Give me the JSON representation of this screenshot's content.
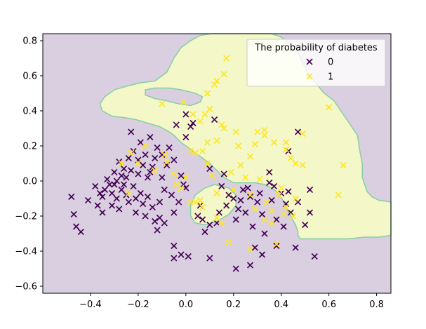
{
  "chart_data": {
    "type": "scatter",
    "title": "",
    "xlabel": "",
    "ylabel": "",
    "xlim": [
      -0.6,
      0.86
    ],
    "ylim": [
      -0.64,
      0.84
    ],
    "xticks": [
      -0.4,
      -0.2,
      0.0,
      0.2,
      0.4,
      0.6,
      0.8
    ],
    "xtick_labels": [
      "−0.4",
      "−0.2",
      "0.0",
      "0.2",
      "0.4",
      "0.6",
      "0.8"
    ],
    "yticks": [
      -0.6,
      -0.4,
      -0.2,
      0.0,
      0.2,
      0.4,
      0.6,
      0.8
    ],
    "ytick_labels": [
      "−0.6",
      "−0.4",
      "−0.2",
      "0.0",
      "0.2",
      "0.4",
      "0.6",
      "0.8"
    ],
    "grid": false,
    "legend": {
      "title": "The probability of diabetes",
      "placement": "top-right",
      "entries": [
        "0",
        "1"
      ]
    },
    "colors": {
      "class0": "#440154",
      "class1": "#fde725",
      "region0": "#d9cfe0",
      "region1": "#f4f7c7",
      "boundary": "#86cfa2"
    },
    "decision_regions": {
      "class1_regions": [
        [
          [
            0.45,
            0.75
          ],
          [
            0.47,
            0.73
          ],
          [
            0.51,
            0.62
          ],
          [
            0.55,
            0.55
          ],
          [
            0.58,
            0.5
          ],
          [
            0.62,
            0.46
          ],
          [
            0.65,
            0.4
          ],
          [
            0.68,
            0.34
          ],
          [
            0.72,
            0.26
          ],
          [
            0.73,
            0.17
          ],
          [
            0.74,
            0.1
          ],
          [
            0.74,
            0.02
          ],
          [
            0.75,
            -0.02
          ],
          [
            0.76,
            -0.06
          ],
          [
            0.78,
            -0.09
          ],
          [
            0.81,
            -0.11
          ],
          [
            0.86,
            -0.12
          ],
          [
            0.86,
            -0.31
          ],
          [
            0.81,
            -0.32
          ],
          [
            0.75,
            -0.32
          ],
          [
            0.68,
            -0.33
          ],
          [
            0.6,
            -0.33
          ],
          [
            0.52,
            -0.33
          ],
          [
            0.48,
            -0.33
          ],
          [
            0.47,
            -0.31
          ],
          [
            0.47,
            -0.29
          ],
          [
            0.46,
            -0.25
          ],
          [
            0.44,
            -0.2
          ],
          [
            0.42,
            -0.15
          ],
          [
            0.4,
            -0.09
          ],
          [
            0.38,
            -0.06
          ],
          [
            0.36,
            -0.04
          ],
          [
            0.33,
            -0.02
          ],
          [
            0.29,
            -0.01
          ],
          [
            0.24,
            -0.01
          ],
          [
            0.2,
            -0.01
          ],
          [
            0.16,
            0.02
          ],
          [
            0.13,
            0.06
          ],
          [
            0.1,
            0.1
          ],
          [
            0.06,
            0.14
          ],
          [
            0.02,
            0.18
          ],
          [
            -0.02,
            0.22
          ],
          [
            -0.05,
            0.26
          ],
          [
            -0.07,
            0.28
          ],
          [
            -0.11,
            0.31
          ],
          [
            -0.16,
            0.33
          ],
          [
            -0.21,
            0.35
          ],
          [
            -0.25,
            0.36
          ],
          [
            -0.31,
            0.37
          ],
          [
            -0.35,
            0.4
          ],
          [
            -0.36,
            0.44
          ],
          [
            -0.34,
            0.48
          ],
          [
            -0.3,
            0.52
          ],
          [
            -0.25,
            0.54
          ],
          [
            -0.19,
            0.56
          ],
          [
            -0.13,
            0.57
          ],
          [
            -0.08,
            0.62
          ],
          [
            -0.05,
            0.7
          ],
          [
            -0.02,
            0.76
          ],
          [
            0.02,
            0.8
          ],
          [
            0.06,
            0.83
          ],
          [
            0.11,
            0.84
          ],
          [
            0.18,
            0.84
          ],
          [
            0.28,
            0.84
          ],
          [
            0.36,
            0.84
          ],
          [
            0.4,
            0.82
          ],
          [
            0.43,
            0.79
          ]
        ],
        [
          [
            0.12,
            -0.02
          ],
          [
            0.18,
            -0.04
          ],
          [
            0.21,
            -0.08
          ],
          [
            0.21,
            -0.14
          ],
          [
            0.18,
            -0.19
          ],
          [
            0.13,
            -0.23
          ],
          [
            0.08,
            -0.25
          ],
          [
            0.04,
            -0.24
          ],
          [
            0.02,
            -0.2
          ],
          [
            0.02,
            -0.14
          ],
          [
            0.04,
            -0.08
          ],
          [
            0.08,
            -0.04
          ]
        ]
      ],
      "class0_holes": [
        [
          [
            -0.17,
            0.52
          ],
          [
            -0.13,
            0.53
          ],
          [
            -0.07,
            0.53
          ],
          [
            -0.02,
            0.52
          ],
          [
            0.04,
            0.5
          ],
          [
            0.07,
            0.48
          ],
          [
            0.06,
            0.45
          ],
          [
            0.02,
            0.43
          ],
          [
            -0.03,
            0.44
          ],
          [
            -0.09,
            0.46
          ],
          [
            -0.13,
            0.47
          ],
          [
            -0.17,
            0.49
          ]
        ]
      ]
    },
    "series": [
      {
        "name": "0",
        "marker": "x",
        "color": "#440154",
        "points": [
          [
            -0.48,
            -0.09
          ],
          [
            -0.47,
            -0.19
          ],
          [
            -0.46,
            -0.26
          ],
          [
            -0.44,
            -0.29
          ],
          [
            -0.41,
            -0.11
          ],
          [
            -0.38,
            -0.03
          ],
          [
            -0.37,
            -0.14
          ],
          [
            -0.36,
            -0.07
          ],
          [
            -0.35,
            -0.09
          ],
          [
            -0.35,
            -0.18
          ],
          [
            -0.34,
            -0.05
          ],
          [
            -0.33,
            0.01
          ],
          [
            -0.32,
            -0.02
          ],
          [
            -0.31,
            -0.07
          ],
          [
            -0.31,
            -0.14
          ],
          [
            -0.3,
            0.05
          ],
          [
            -0.3,
            -0.02
          ],
          [
            -0.29,
            0.0
          ],
          [
            -0.29,
            -0.1
          ],
          [
            -0.28,
            -0.16
          ],
          [
            -0.28,
            0.11
          ],
          [
            -0.27,
            -0.05
          ],
          [
            -0.27,
            0.03
          ],
          [
            -0.26,
            0.07
          ],
          [
            -0.26,
            -0.02
          ],
          [
            -0.25,
            0.02
          ],
          [
            -0.25,
            -0.08
          ],
          [
            -0.24,
            0.13
          ],
          [
            -0.24,
            -0.12
          ],
          [
            -0.23,
            0.06
          ],
          [
            -0.23,
            0.28
          ],
          [
            -0.22,
            -0.03
          ],
          [
            -0.22,
            0.17
          ],
          [
            -0.21,
            -0.1
          ],
          [
            -0.21,
            -0.18
          ],
          [
            -0.2,
            0.04
          ],
          [
            -0.2,
            0.12
          ],
          [
            -0.19,
            0.22
          ],
          [
            -0.19,
            -0.07
          ],
          [
            -0.18,
            -0.13
          ],
          [
            -0.18,
            0.09
          ],
          [
            -0.17,
            -0.2
          ],
          [
            -0.17,
            0.15
          ],
          [
            -0.16,
            0.02
          ],
          [
            -0.16,
            -0.09
          ],
          [
            -0.15,
            0.25
          ],
          [
            -0.15,
            0.05
          ],
          [
            -0.14,
            -0.15
          ],
          [
            -0.14,
            0.08
          ],
          [
            -0.13,
            -0.23
          ],
          [
            -0.13,
            0.13
          ],
          [
            -0.12,
            -0.28
          ],
          [
            -0.12,
            0.19
          ],
          [
            -0.11,
            -0.12
          ],
          [
            -0.11,
            -0.21
          ],
          [
            -0.1,
            0.02
          ],
          [
            -0.1,
            0.15
          ],
          [
            -0.09,
            -0.24
          ],
          [
            -0.09,
            -0.05
          ],
          [
            -0.08,
            0.09
          ],
          [
            -0.07,
            0.19
          ],
          [
            -0.06,
            -0.08
          ],
          [
            -0.05,
            -0.18
          ],
          [
            -0.05,
            0.12
          ],
          [
            -0.04,
            0.32
          ],
          [
            -0.03,
            -0.12
          ],
          [
            -0.02,
            0.03
          ],
          [
            -0.01,
            -0.02
          ],
          [
            0.0,
            0.38
          ],
          [
            0.0,
            -0.04
          ],
          [
            0.0,
            0.25
          ],
          [
            0.02,
            0.31
          ],
          [
            0.03,
            0.33
          ],
          [
            0.05,
            -0.2
          ],
          [
            0.06,
            -0.14
          ],
          [
            0.07,
            -0.22
          ],
          [
            0.08,
            -0.29
          ],
          [
            0.1,
            -0.25
          ],
          [
            0.1,
            0.07
          ],
          [
            0.12,
            0.35
          ],
          [
            0.13,
            -0.24
          ],
          [
            0.14,
            -0.18
          ],
          [
            0.15,
            -0.03
          ],
          [
            0.16,
            0.04
          ],
          [
            0.17,
            -0.14
          ],
          [
            0.18,
            -0.08
          ],
          [
            0.2,
            -0.1
          ],
          [
            0.21,
            -0.22
          ],
          [
            0.22,
            -0.16
          ],
          [
            0.23,
            -0.11
          ],
          [
            0.24,
            -0.05
          ],
          [
            0.25,
            -0.18
          ],
          [
            0.26,
            -0.04
          ],
          [
            0.27,
            -0.09
          ],
          [
            0.28,
            -0.26
          ],
          [
            0.3,
            -0.12
          ],
          [
            0.31,
            -0.07
          ],
          [
            0.32,
            -0.19
          ],
          [
            0.33,
            -0.3
          ],
          [
            0.35,
            -0.01
          ],
          [
            0.35,
            0.05
          ],
          [
            0.36,
            -0.11
          ],
          [
            0.37,
            -0.03
          ],
          [
            0.38,
            -0.22
          ],
          [
            0.38,
            -0.37
          ],
          [
            0.4,
            -0.07
          ],
          [
            0.41,
            -0.26
          ],
          [
            0.42,
            -0.13
          ],
          [
            0.43,
            0.17
          ],
          [
            0.43,
            -0.06
          ],
          [
            0.44,
            -0.18
          ],
          [
            0.46,
            -0.38
          ],
          [
            0.47,
            -0.12
          ],
          [
            0.47,
            0.28
          ],
          [
            0.5,
            -0.25
          ],
          [
            0.52,
            -0.18
          ],
          [
            0.52,
            -0.05
          ],
          [
            0.54,
            -0.43
          ],
          [
            -0.05,
            -0.37
          ],
          [
            -0.05,
            -0.44
          ],
          [
            -0.02,
            -0.42
          ],
          [
            0.01,
            -0.43
          ],
          [
            0.1,
            -0.44
          ],
          [
            0.21,
            -0.5
          ],
          [
            0.27,
            -0.48
          ],
          [
            0.32,
            -0.42
          ],
          [
            0.29,
            -0.38
          ]
        ]
      },
      {
        "name": "1",
        "marker": "x",
        "color": "#fde725",
        "points": [
          [
            0.17,
            0.7
          ],
          [
            0.16,
            0.61
          ],
          [
            0.12,
            0.55
          ],
          [
            0.13,
            0.57
          ],
          [
            0.09,
            0.5
          ],
          [
            -0.01,
            0.45
          ],
          [
            -0.1,
            0.44
          ],
          [
            0.1,
            0.41
          ],
          [
            0.08,
            0.38
          ],
          [
            0.06,
            0.34
          ],
          [
            0.03,
            0.38
          ],
          [
            0.15,
            0.32
          ],
          [
            0.16,
            0.3
          ],
          [
            0.21,
            0.28
          ],
          [
            0.22,
            0.2
          ],
          [
            0.13,
            0.23
          ],
          [
            0.3,
            0.28
          ],
          [
            0.33,
            0.29
          ],
          [
            0.33,
            0.26
          ],
          [
            0.37,
            0.22
          ],
          [
            0.42,
            0.22
          ],
          [
            0.42,
            0.18
          ],
          [
            0.44,
            0.13
          ],
          [
            0.46,
            0.1
          ],
          [
            0.49,
            0.09
          ],
          [
            0.49,
            0.27
          ],
          [
            0.6,
            0.42
          ],
          [
            0.66,
            0.09
          ],
          [
            0.64,
            -0.08
          ],
          [
            0.29,
            0.21
          ],
          [
            0.27,
            0.14
          ],
          [
            0.19,
            0.05
          ],
          [
            0.02,
            0.17
          ],
          [
            0.04,
            0.16
          ],
          [
            0.07,
            0.17
          ],
          [
            0.09,
            0.1
          ],
          [
            0.09,
            0.22
          ],
          [
            -0.05,
            0.04
          ],
          [
            -0.04,
            -0.02
          ],
          [
            -0.09,
            0.15
          ],
          [
            -0.13,
            0.06
          ],
          [
            -0.17,
            0.2
          ],
          [
            -0.2,
            0.1
          ],
          [
            -0.24,
            -0.07
          ],
          [
            -0.27,
            0.1
          ],
          [
            -0.23,
            0.16
          ],
          [
            -0.08,
            0.11
          ],
          [
            0.02,
            -0.12
          ],
          [
            0.04,
            -0.12
          ],
          [
            0.06,
            -0.11
          ],
          [
            0.07,
            -0.15
          ],
          [
            0.13,
            -0.07
          ],
          [
            0.13,
            -0.21
          ],
          [
            0.15,
            -0.24
          ],
          [
            0.18,
            -0.35
          ],
          [
            0.27,
            -0.08
          ],
          [
            0.29,
            -0.16
          ],
          [
            0.34,
            -0.12
          ],
          [
            0.36,
            -0.17
          ],
          [
            0.36,
            -0.24
          ],
          [
            0.33,
            -0.22
          ],
          [
            0.39,
            -0.08
          ],
          [
            0.4,
            -0.04
          ],
          [
            0.41,
            -0.19
          ],
          [
            0.45,
            -0.2
          ],
          [
            0.42,
            -0.15
          ],
          [
            0.46,
            -0.1
          ],
          [
            0.27,
            -0.39
          ],
          [
            0.38,
            -0.36
          ],
          [
            0.23,
            0.09
          ],
          [
            0.25,
            0.02
          ],
          [
            0.31,
            0.01
          ],
          [
            0.2,
            -0.05
          ],
          [
            0.0,
            0.02
          ],
          [
            0.11,
            0.03
          ],
          [
            -0.02,
            -0.04
          ]
        ]
      }
    ]
  }
}
